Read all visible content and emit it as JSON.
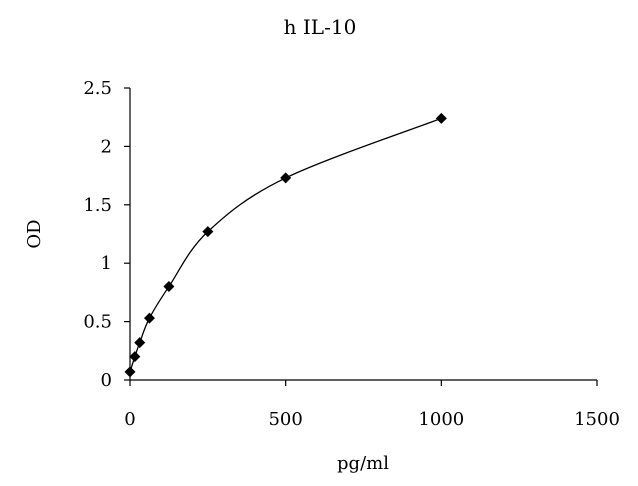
{
  "chart_data": {
    "type": "scatter",
    "title": "h IL-10",
    "xlabel": "pg/ml",
    "ylabel": "OD",
    "xlim": [
      0,
      1500
    ],
    "ylim": [
      0,
      2.5
    ],
    "xticks": [
      0,
      500,
      1000,
      1500
    ],
    "yticks": [
      0,
      0.5,
      1,
      1.5,
      2,
      2.5
    ],
    "xtick_labels": [
      "0",
      "500",
      "1000",
      "1500"
    ],
    "ytick_labels": [
      "0",
      "0.5",
      "1",
      "1.5",
      "2",
      "2.5"
    ],
    "grid": false,
    "legend": "none",
    "marker": "diamond",
    "line": "smooth",
    "series": [
      {
        "x": [
          0,
          15.6,
          31.25,
          62.5,
          125,
          250,
          500,
          1000
        ],
        "y": [
          0.07,
          0.2,
          0.32,
          0.53,
          0.8,
          1.27,
          1.73,
          2.24
        ]
      }
    ]
  }
}
